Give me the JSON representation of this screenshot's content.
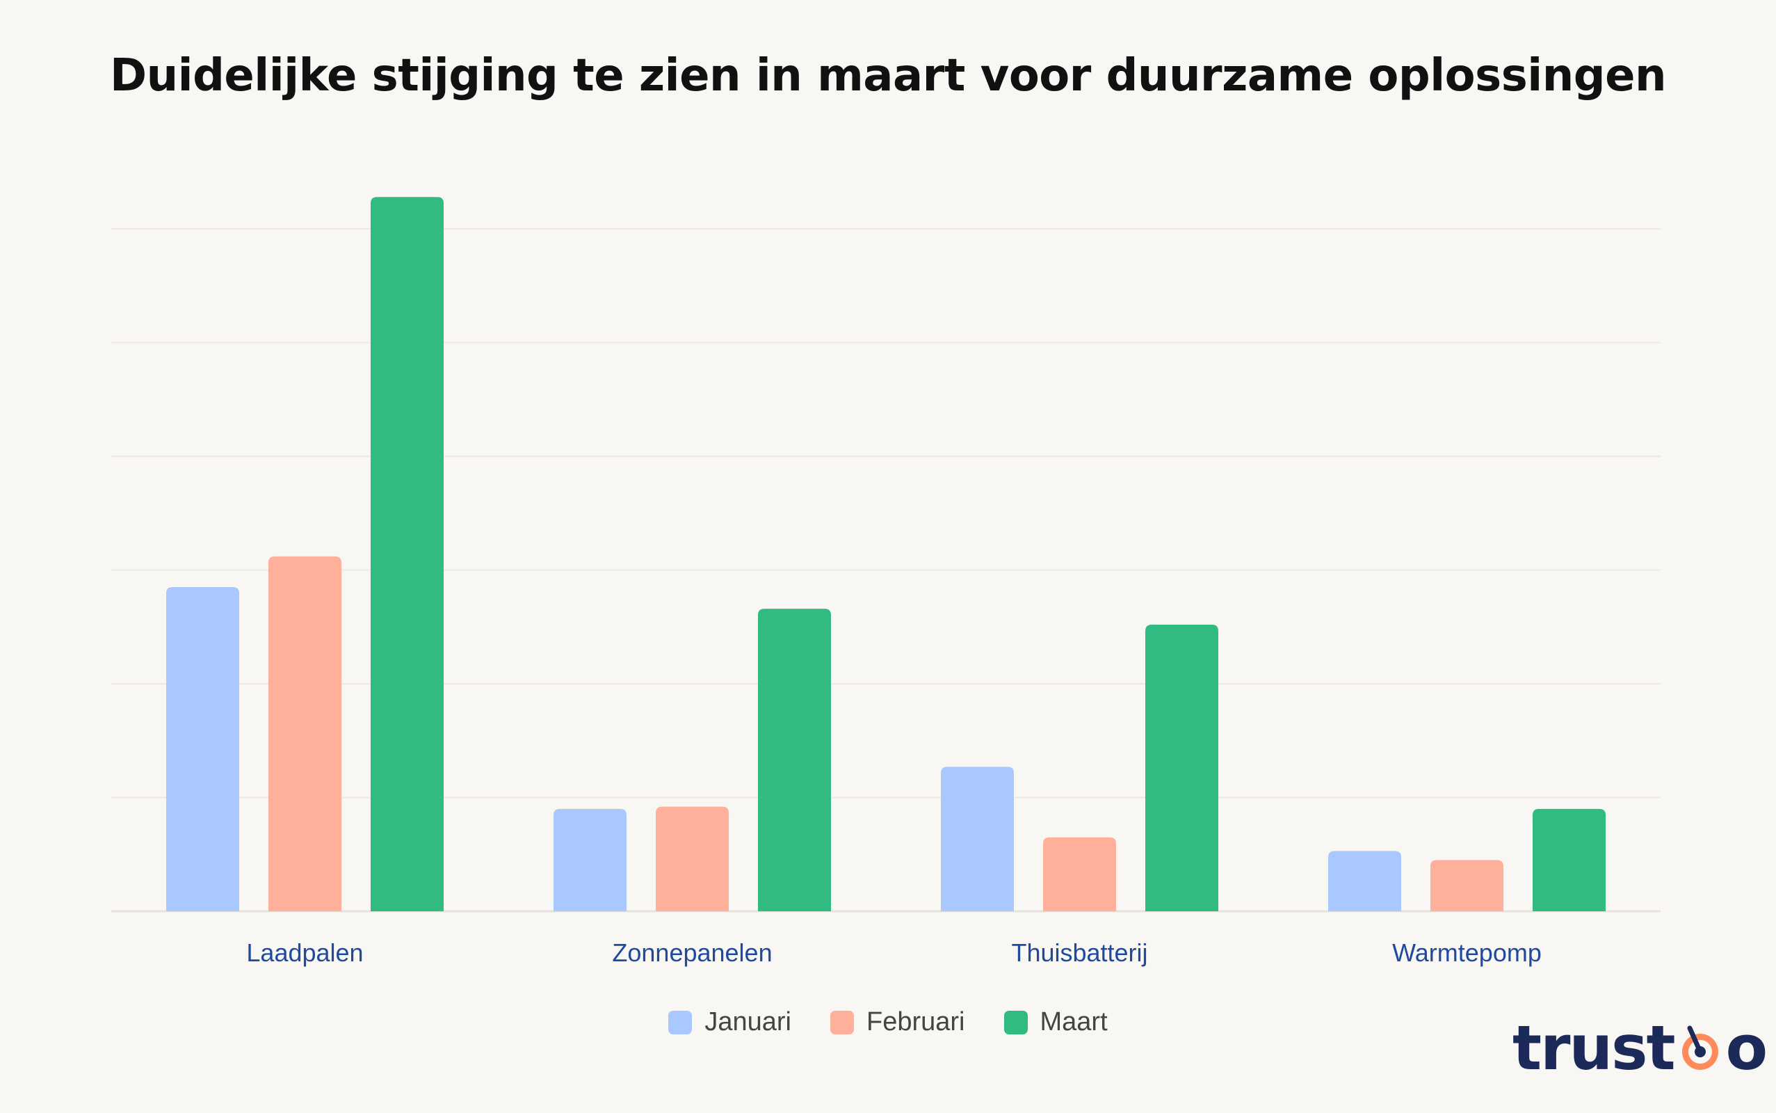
{
  "chart_data": {
    "type": "bar",
    "title": "Duidelijke stijging te zien in maart voor duurzame oplossingen",
    "categories": [
      "Laadpalen",
      "Zonnepanelen",
      "Thuisbatterij",
      "Warmtepomp"
    ],
    "series": [
      {
        "name": "Januari",
        "color": "#a9c8ff",
        "values": [
          2.85,
          0.9,
          1.27,
          0.53
        ]
      },
      {
        "name": "Februari",
        "color": "#ffb09a",
        "values": [
          3.12,
          0.92,
          0.65,
          0.45
        ]
      },
      {
        "name": "Maart",
        "color": "#31bb80",
        "values": [
          6.28,
          2.66,
          2.52,
          0.9
        ]
      }
    ],
    "ylim": [
      0,
      6
    ],
    "grid": true,
    "legend": "bottom-center"
  },
  "logo": {
    "text_left": "trust",
    "text_right": "o",
    "name": "trustoo-logo"
  }
}
